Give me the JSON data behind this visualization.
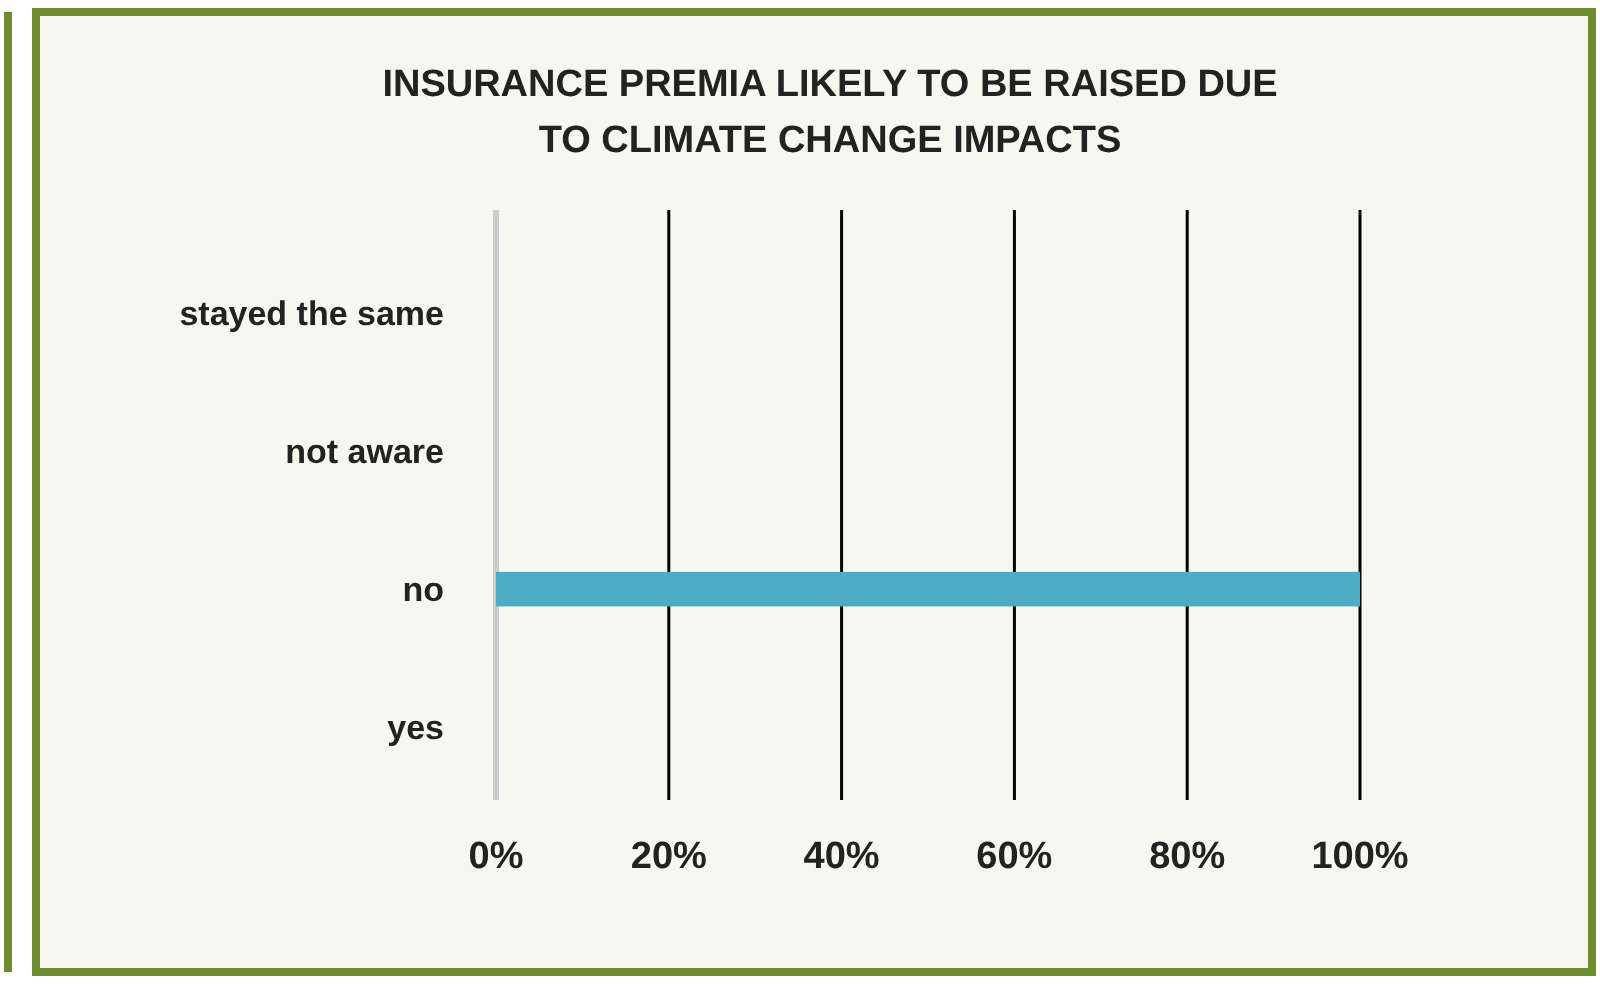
{
  "chart_data": {
    "type": "bar",
    "orientation": "horizontal",
    "title": "INSURANCE  PREMIA  LIKELY TO BE RAISED DUE\nTO CLIMATE CHANGE  IMPACTS",
    "categories": [
      "stayed the same",
      "not aware",
      "no",
      "yes"
    ],
    "values": [
      0,
      0,
      100,
      0
    ],
    "color": "#4bacc6",
    "xlim": [
      0,
      100
    ],
    "xticks": [
      {
        "value": 0,
        "label": "0%"
      },
      {
        "value": 20,
        "label": "20%"
      },
      {
        "value": 40,
        "label": "40%"
      },
      {
        "value": 60,
        "label": "60%"
      },
      {
        "value": 80,
        "label": "80%"
      },
      {
        "value": 100,
        "label": "100%"
      }
    ],
    "grid": "x"
  }
}
